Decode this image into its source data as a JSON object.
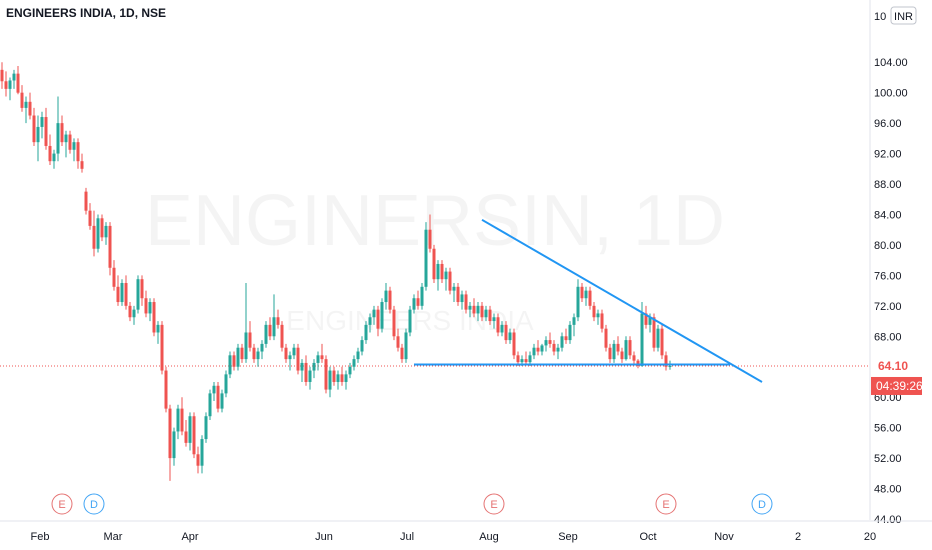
{
  "chart_data": {
    "type": "candlestick",
    "title": "ENGINEERS INDIA, 1D, NSE",
    "watermark_main": "ENGINERSIN, 1D",
    "watermark_sub": "ENGINEERS INDIA",
    "currency_badge": "INR",
    "y_top_label": "10",
    "price_ticks": [
      "104.00",
      "100.00",
      "96.00",
      "92.00",
      "88.00",
      "84.00",
      "80.00",
      "76.00",
      "72.00",
      "68.00",
      "60.00",
      "56.00",
      "52.00",
      "48.00",
      "44.00"
    ],
    "ylim": [
      44,
      106
    ],
    "x_labels": [
      "Feb",
      "Mar",
      "Apr",
      "Jun",
      "Jul",
      "Aug",
      "Sep",
      "Oct",
      "Nov",
      "2",
      "20"
    ],
    "last_price": "64.10",
    "countdown": "04:39:26",
    "event_markers": [
      {
        "type": "E",
        "color": "#e57373"
      },
      {
        "type": "D",
        "color": "#42a5f5"
      },
      {
        "type": "E",
        "color": "#e57373"
      },
      {
        "type": "E",
        "color": "#e57373"
      },
      {
        "type": "D",
        "color": "#42a5f5"
      }
    ],
    "colors": {
      "up": "#26a69a",
      "down": "#ef5350",
      "trendline": "#2196f3",
      "last_price": "#ef5350",
      "axis_text": "#131722",
      "grid": "#f0f3fa"
    },
    "candles": [
      [
        103,
        104,
        100.5,
        101.5
      ],
      [
        101.5,
        102.8,
        99.5,
        100.5
      ],
      [
        100.5,
        102,
        99,
        101.6
      ],
      [
        101.6,
        103,
        100.5,
        102.5
      ],
      [
        102.5,
        103.5,
        99.8,
        100
      ],
      [
        100,
        101,
        97.5,
        98
      ],
      [
        98,
        99.5,
        96,
        98.8
      ],
      [
        98.8,
        100,
        96.5,
        97
      ],
      [
        97,
        98,
        93,
        93.5
      ],
      [
        93.5,
        97,
        91,
        95.5
      ],
      [
        95.5,
        97.5,
        94,
        96.8
      ],
      [
        96.8,
        98,
        92.5,
        93
      ],
      [
        93,
        94.5,
        90.5,
        91
      ],
      [
        91,
        92.5,
        90,
        92
      ],
      [
        92,
        99.5,
        91,
        96
      ],
      [
        96,
        97,
        93,
        93.5
      ],
      [
        93.5,
        95,
        91.5,
        94.5
      ],
      [
        94.5,
        95,
        92,
        92.5
      ],
      [
        92.5,
        94,
        91,
        93.5
      ],
      [
        93.5,
        94,
        90,
        91
      ],
      [
        91,
        92,
        89.5,
        90
      ],
      [
        87,
        87.5,
        84,
        84.5
      ],
      [
        84.5,
        85.5,
        82,
        82.5
      ],
      [
        82.5,
        84.5,
        78.5,
        79.5
      ],
      [
        79.5,
        84,
        79,
        83.5
      ],
      [
        83.5,
        84,
        80.5,
        81
      ],
      [
        81,
        83,
        80,
        82.5
      ],
      [
        82.5,
        83,
        76,
        77
      ],
      [
        77,
        78,
        74,
        74.5
      ],
      [
        74.5,
        76,
        72,
        72.5
      ],
      [
        72.5,
        75.5,
        72,
        75
      ],
      [
        75,
        76,
        71.5,
        72
      ],
      [
        72,
        72.5,
        70,
        70.5
      ],
      [
        70.5,
        72,
        69.5,
        71.5
      ],
      [
        71.5,
        76,
        71,
        75.5
      ],
      [
        75.5,
        76,
        72,
        73
      ],
      [
        73,
        74,
        70.5,
        71
      ],
      [
        71,
        73,
        70,
        72.5
      ],
      [
        72.5,
        73,
        68,
        68.5
      ],
      [
        68.5,
        70,
        67,
        69.5
      ],
      [
        69.5,
        70,
        63,
        63.5
      ],
      [
        63.5,
        64,
        58,
        58.5
      ],
      [
        58.5,
        59,
        49,
        52
      ],
      [
        52,
        56,
        51,
        55.5
      ],
      [
        55.5,
        59,
        54.5,
        58.5
      ],
      [
        58.5,
        60,
        55,
        55.5
      ],
      [
        55.5,
        57,
        53.5,
        54
      ],
      [
        54,
        58,
        53,
        57.5
      ],
      [
        57.5,
        58,
        52,
        52.5
      ],
      [
        52.5,
        53.5,
        50,
        51
      ],
      [
        51,
        55,
        50,
        54.5
      ],
      [
        54.5,
        58,
        54,
        57.5
      ],
      [
        57.5,
        61,
        57,
        60.5
      ],
      [
        60.5,
        62,
        59.5,
        61.5
      ],
      [
        61.5,
        62,
        58,
        58.5
      ],
      [
        58.5,
        61,
        58,
        60.5
      ],
      [
        60.5,
        63.5,
        60,
        63
      ],
      [
        63,
        66,
        62.5,
        65.5
      ],
      [
        65.5,
        66,
        63.5,
        64
      ],
      [
        64,
        67,
        63.5,
        66.5
      ],
      [
        66.5,
        67,
        64.5,
        65
      ],
      [
        65,
        75,
        64.5,
        68.5
      ],
      [
        68.5,
        70,
        66,
        66.5
      ],
      [
        66.5,
        67,
        64.5,
        65
      ],
      [
        65,
        66.5,
        64,
        66
      ],
      [
        66,
        67.5,
        65,
        67
      ],
      [
        67,
        70,
        66.5,
        69.5
      ],
      [
        69.5,
        70.5,
        67.5,
        68
      ],
      [
        68,
        73.5,
        67.5,
        70.5
      ],
      [
        70.5,
        71.5,
        69,
        69.5
      ],
      [
        69.5,
        70,
        66,
        66.5
      ],
      [
        66.5,
        67,
        64.5,
        65
      ],
      [
        65,
        66,
        63.5,
        65.5
      ],
      [
        65.5,
        67,
        65,
        66.5
      ],
      [
        66.5,
        67,
        63,
        63.5
      ],
      [
        63.5,
        65,
        62,
        64.5
      ],
      [
        64.5,
        65.5,
        61.5,
        62
      ],
      [
        62,
        64,
        61,
        63.5
      ],
      [
        63.5,
        65,
        62.5,
        64.5
      ],
      [
        64.5,
        66,
        63.5,
        65.5
      ],
      [
        65.5,
        67,
        64.5,
        65
      ],
      [
        65,
        65.5,
        60.5,
        61
      ],
      [
        61,
        64,
        60,
        63.5
      ],
      [
        63.5,
        64,
        61.5,
        62
      ],
      [
        62,
        63.5,
        61,
        63
      ],
      [
        63,
        64,
        61.5,
        62
      ],
      [
        62,
        63.5,
        61,
        63
      ],
      [
        63,
        64.5,
        62.5,
        64
      ],
      [
        64,
        65.5,
        63.5,
        65
      ],
      [
        65,
        66.5,
        64.5,
        66
      ],
      [
        66,
        68,
        65.5,
        67.5
      ],
      [
        67.5,
        70,
        67,
        69.5
      ],
      [
        69.5,
        71,
        68.5,
        70.5
      ],
      [
        70.5,
        72,
        69.5,
        71.5
      ],
      [
        71.5,
        72,
        68,
        69
      ],
      [
        69,
        73,
        68.5,
        72.5
      ],
      [
        72.5,
        75,
        71.5,
        74
      ],
      [
        74,
        74.5,
        71,
        71.5
      ],
      [
        71.5,
        72,
        67.5,
        68
      ],
      [
        68,
        69,
        66,
        66.5
      ],
      [
        66.5,
        67,
        64.5,
        65
      ],
      [
        65,
        69,
        64.5,
        68.5
      ],
      [
        68.5,
        72,
        68,
        71.5
      ],
      [
        71.5,
        73.5,
        71,
        73
      ],
      [
        73,
        74,
        71.5,
        72
      ],
      [
        72,
        75,
        71.5,
        74.5
      ],
      [
        74.5,
        83,
        74,
        82
      ],
      [
        82,
        84,
        79,
        79.5
      ],
      [
        79.5,
        80,
        75,
        75.5
      ],
      [
        75.5,
        78,
        74,
        77.5
      ],
      [
        77.5,
        78,
        75,
        75.5
      ],
      [
        75.5,
        77,
        74,
        76.5
      ],
      [
        76.5,
        77,
        73.5,
        74
      ],
      [
        74,
        75,
        72.5,
        74.5
      ],
      [
        74.5,
        75,
        72,
        72.5
      ],
      [
        72.5,
        74,
        71.5,
        73.5
      ],
      [
        73.5,
        74,
        71,
        71.5
      ],
      [
        71.5,
        72.5,
        70.5,
        72
      ],
      [
        72,
        73,
        70.5,
        71
      ],
      [
        71,
        72.5,
        70,
        72
      ],
      [
        72,
        72.5,
        70,
        70.5
      ],
      [
        70.5,
        72,
        70,
        71.5
      ],
      [
        71.5,
        72,
        69.5,
        70
      ],
      [
        70,
        71,
        69,
        70.5
      ],
      [
        70.5,
        71,
        68,
        68.5
      ],
      [
        68.5,
        70,
        68,
        69.5
      ],
      [
        69.5,
        70,
        67,
        67.5
      ],
      [
        67.5,
        69,
        67,
        68.5
      ],
      [
        68.5,
        69,
        65,
        65.5
      ],
      [
        65.5,
        66,
        64.1,
        64.6
      ],
      [
        64.6,
        65.5,
        64.1,
        65
      ],
      [
        65,
        66,
        64.3,
        64.6
      ],
      [
        64.6,
        66,
        64.1,
        65.5
      ],
      [
        65.5,
        67,
        65,
        66.5
      ],
      [
        66.5,
        67.5,
        65.5,
        66
      ],
      [
        66,
        67,
        65.5,
        66.8
      ],
      [
        66.8,
        68,
        66,
        67.5
      ],
      [
        67.5,
        68.5,
        66.5,
        67
      ],
      [
        67,
        67.5,
        65.5,
        66
      ],
      [
        66,
        67,
        65,
        66.5
      ],
      [
        66.5,
        68.5,
        66,
        68
      ],
      [
        68,
        69,
        67,
        67.5
      ],
      [
        67.5,
        70,
        67,
        69.5
      ],
      [
        69.5,
        71,
        68,
        70.5
      ],
      [
        70.5,
        75.5,
        70,
        74.5
      ],
      [
        74.5,
        75,
        72.5,
        73
      ],
      [
        73,
        74.5,
        72,
        74
      ],
      [
        74,
        74.5,
        71.5,
        72
      ],
      [
        72,
        72.5,
        70,
        70.5
      ],
      [
        70.5,
        71.5,
        69.5,
        71
      ],
      [
        71,
        71.5,
        68.5,
        69
      ],
      [
        69,
        69.5,
        66,
        66.5
      ],
      [
        66.5,
        67,
        64.5,
        65
      ],
      [
        65,
        67.5,
        64.5,
        67
      ],
      [
        67,
        68,
        65.5,
        66
      ],
      [
        66,
        66.5,
        64.5,
        65
      ],
      [
        65,
        68,
        64.8,
        67.5
      ],
      [
        67.5,
        68,
        65,
        65.5
      ],
      [
        65.5,
        66,
        64.3,
        64.8
      ],
      [
        64.8,
        65,
        63.8,
        64.1
      ],
      [
        64.1,
        72.5,
        64,
        71
      ],
      [
        71,
        72,
        69,
        69.5
      ],
      [
        69.5,
        71,
        68.5,
        70.5
      ],
      [
        70.5,
        71,
        66,
        66.5
      ],
      [
        66.5,
        69.5,
        66,
        69
      ],
      [
        69,
        69.5,
        65,
        65.5
      ],
      [
        65.5,
        66,
        63.5,
        64
      ],
      [
        64,
        64.8,
        63.6,
        64.1
      ]
    ],
    "trendlines": [
      {
        "name": "",
        "from": [
          120,
          83.3
        ],
        "to": [
          190,
          62
        ]
      },
      {
        "name": "",
        "from": [
          103,
          64.3
        ],
        "to": [
          182,
          64.3
        ]
      }
    ],
    "marker_positions": [
      15,
      23,
      123,
      166,
      190
    ]
  }
}
